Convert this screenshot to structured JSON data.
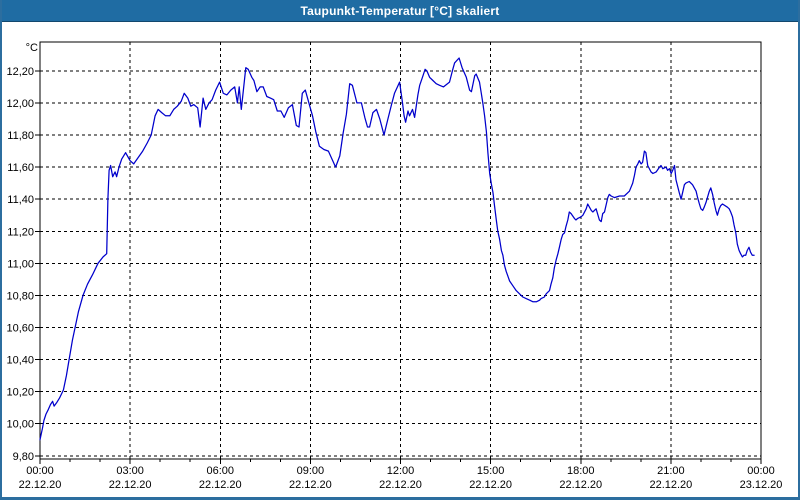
{
  "window": {
    "title": "Taupunkt-Temperatur [°C] skaliert"
  },
  "colors": {
    "titlebar_bg": "#1f6ca3",
    "titlebar_text": "#ffffff",
    "frame": "#2c6e9f",
    "plot_bg": "#ffffff",
    "grid": "#000000",
    "axis": "#000000",
    "label": "#000000",
    "line": "#0000cc"
  },
  "chart_data": {
    "type": "line",
    "title": "Taupunkt-Temperatur [°C] skaliert",
    "y_unit_label": "°C",
    "grid": "dashed",
    "legend": "none",
    "ylim": [
      9.78,
      12.38
    ],
    "xlim_hours": [
      0,
      24
    ],
    "minor_xtick_every_hours": 1,
    "yticks": [
      {
        "value": 12.2,
        "label": "12,20"
      },
      {
        "value": 12.0,
        "label": "12,00"
      },
      {
        "value": 11.8,
        "label": "11,80"
      },
      {
        "value": 11.6,
        "label": "11,60"
      },
      {
        "value": 11.4,
        "label": "11,40"
      },
      {
        "value": 11.2,
        "label": "11,20"
      },
      {
        "value": 11.0,
        "label": "11,00"
      },
      {
        "value": 10.8,
        "label": "10,80"
      },
      {
        "value": 10.6,
        "label": "10,60"
      },
      {
        "value": 10.4,
        "label": "10,40"
      },
      {
        "value": 10.2,
        "label": "10,20"
      },
      {
        "value": 10.0,
        "label": "10,00"
      },
      {
        "value": 9.8,
        "label": "9,80"
      }
    ],
    "xticks": [
      {
        "hour": 0,
        "time": "00:00",
        "date": "22.12.20"
      },
      {
        "hour": 3,
        "time": "03:00",
        "date": "22.12.20"
      },
      {
        "hour": 6,
        "time": "06:00",
        "date": "22.12.20"
      },
      {
        "hour": 9,
        "time": "09:00",
        "date": "22.12.20"
      },
      {
        "hour": 12,
        "time": "12:00",
        "date": "22.12.20"
      },
      {
        "hour": 15,
        "time": "15:00",
        "date": "22.12.20"
      },
      {
        "hour": 18,
        "time": "18:00",
        "date": "22.12.20"
      },
      {
        "hour": 21,
        "time": "21:00",
        "date": "22.12.20"
      },
      {
        "hour": 24,
        "time": "00:00",
        "date": "23.12.20"
      }
    ],
    "series": [
      {
        "name": "Taupunkt-Temperatur",
        "color": "#0000cc",
        "points": [
          [
            0,
            9.9
          ],
          [
            0.08,
            9.97
          ],
          [
            0.13,
            10.02
          ],
          [
            0.2,
            10.06
          ],
          [
            0.28,
            10.09
          ],
          [
            0.35,
            10.12
          ],
          [
            0.42,
            10.14
          ],
          [
            0.47,
            10.11
          ],
          [
            0.55,
            10.13
          ],
          [
            0.65,
            10.16
          ],
          [
            0.78,
            10.21
          ],
          [
            0.88,
            10.3
          ],
          [
            0.97,
            10.4
          ],
          [
            1.08,
            10.52
          ],
          [
            1.17,
            10.6
          ],
          [
            1.28,
            10.7
          ],
          [
            1.43,
            10.8
          ],
          [
            1.58,
            10.87
          ],
          [
            1.75,
            10.93
          ],
          [
            1.93,
            11.0
          ],
          [
            2.1,
            11.04
          ],
          [
            2.22,
            11.06
          ],
          [
            2.26,
            11.4
          ],
          [
            2.3,
            11.58
          ],
          [
            2.35,
            11.61
          ],
          [
            2.42,
            11.54
          ],
          [
            2.5,
            11.57
          ],
          [
            2.55,
            11.54
          ],
          [
            2.63,
            11.6
          ],
          [
            2.72,
            11.65
          ],
          [
            2.85,
            11.69
          ],
          [
            3.0,
            11.64
          ],
          [
            3.12,
            11.62
          ],
          [
            3.27,
            11.66
          ],
          [
            3.42,
            11.7
          ],
          [
            3.57,
            11.75
          ],
          [
            3.7,
            11.8
          ],
          [
            3.83,
            11.92
          ],
          [
            3.93,
            11.96
          ],
          [
            4.05,
            11.94
          ],
          [
            4.18,
            11.92
          ],
          [
            4.32,
            11.92
          ],
          [
            4.45,
            11.96
          ],
          [
            4.57,
            11.98
          ],
          [
            4.7,
            12.01
          ],
          [
            4.8,
            12.06
          ],
          [
            4.92,
            12.03
          ],
          [
            5.02,
            11.98
          ],
          [
            5.12,
            11.99
          ],
          [
            5.25,
            11.97
          ],
          [
            5.33,
            11.85
          ],
          [
            5.43,
            12.03
          ],
          [
            5.52,
            11.96
          ],
          [
            5.63,
            12.0
          ],
          [
            5.73,
            12.02
          ],
          [
            5.85,
            12.08
          ],
          [
            5.98,
            12.13
          ],
          [
            6.1,
            12.06
          ],
          [
            6.22,
            12.05
          ],
          [
            6.35,
            12.08
          ],
          [
            6.48,
            12.1
          ],
          [
            6.57,
            12.0
          ],
          [
            6.63,
            12.1
          ],
          [
            6.7,
            11.96
          ],
          [
            6.85,
            12.22
          ],
          [
            6.93,
            12.21
          ],
          [
            7.05,
            12.16
          ],
          [
            7.12,
            12.14
          ],
          [
            7.22,
            12.07
          ],
          [
            7.33,
            12.1
          ],
          [
            7.43,
            12.1
          ],
          [
            7.55,
            12.04
          ],
          [
            7.67,
            12.03
          ],
          [
            7.78,
            12.02
          ],
          [
            7.9,
            11.95
          ],
          [
            8.02,
            11.95
          ],
          [
            8.13,
            11.91
          ],
          [
            8.27,
            11.97
          ],
          [
            8.4,
            11.99
          ],
          [
            8.53,
            11.86
          ],
          [
            8.62,
            11.85
          ],
          [
            8.73,
            12.06
          ],
          [
            8.83,
            12.08
          ],
          [
            8.95,
            12.0
          ],
          [
            9.07,
            11.92
          ],
          [
            9.18,
            11.82
          ],
          [
            9.3,
            11.73
          ],
          [
            9.45,
            11.71
          ],
          [
            9.6,
            11.7
          ],
          [
            9.72,
            11.65
          ],
          [
            9.84,
            11.6
          ],
          [
            9.98,
            11.67
          ],
          [
            10.09,
            11.81
          ],
          [
            10.2,
            11.93
          ],
          [
            10.31,
            12.12
          ],
          [
            10.4,
            12.11
          ],
          [
            10.55,
            12.0
          ],
          [
            10.7,
            12.0
          ],
          [
            10.81,
            11.91
          ],
          [
            10.9,
            11.85
          ],
          [
            10.97,
            11.85
          ],
          [
            11.08,
            11.94
          ],
          [
            11.2,
            11.96
          ],
          [
            11.31,
            11.9
          ],
          [
            11.45,
            11.8
          ],
          [
            11.58,
            11.9
          ],
          [
            11.7,
            11.99
          ],
          [
            11.8,
            12.06
          ],
          [
            11.97,
            12.13
          ],
          [
            12.06,
            12.01
          ],
          [
            12.12,
            11.92
          ],
          [
            12.17,
            11.88
          ],
          [
            12.25,
            11.95
          ],
          [
            12.3,
            11.92
          ],
          [
            12.4,
            11.96
          ],
          [
            12.47,
            11.91
          ],
          [
            12.58,
            12.05
          ],
          [
            12.64,
            12.11
          ],
          [
            12.75,
            12.17
          ],
          [
            12.82,
            12.21
          ],
          [
            12.88,
            12.2
          ],
          [
            12.97,
            12.16
          ],
          [
            13.08,
            12.14
          ],
          [
            13.19,
            12.12
          ],
          [
            13.3,
            12.11
          ],
          [
            13.43,
            12.1
          ],
          [
            13.63,
            12.13
          ],
          [
            13.74,
            12.21
          ],
          [
            13.8,
            12.25
          ],
          [
            13.95,
            12.28
          ],
          [
            14.05,
            12.22
          ],
          [
            14.19,
            12.16
          ],
          [
            14.3,
            12.08
          ],
          [
            14.36,
            12.07
          ],
          [
            14.47,
            12.17
          ],
          [
            14.52,
            12.18
          ],
          [
            14.63,
            12.13
          ],
          [
            14.69,
            12.06
          ],
          [
            14.74,
            12.0
          ],
          [
            14.8,
            11.92
          ],
          [
            14.86,
            11.82
          ],
          [
            14.91,
            11.69
          ],
          [
            14.97,
            11.56
          ],
          [
            15.02,
            11.5
          ],
          [
            15.08,
            11.44
          ],
          [
            15.13,
            11.36
          ],
          [
            15.19,
            11.27
          ],
          [
            15.24,
            11.2
          ],
          [
            15.3,
            11.15
          ],
          [
            15.36,
            11.08
          ],
          [
            15.41,
            11.05
          ],
          [
            15.46,
            10.99
          ],
          [
            15.52,
            10.95
          ],
          [
            15.63,
            10.89
          ],
          [
            15.74,
            10.86
          ],
          [
            15.85,
            10.83
          ],
          [
            15.96,
            10.81
          ],
          [
            16.07,
            10.79
          ],
          [
            16.18,
            10.78
          ],
          [
            16.3,
            10.77
          ],
          [
            16.41,
            10.76
          ],
          [
            16.52,
            10.76
          ],
          [
            16.63,
            10.77
          ],
          [
            16.68,
            10.78
          ],
          [
            16.79,
            10.79
          ],
          [
            16.85,
            10.81
          ],
          [
            16.96,
            10.83
          ],
          [
            17.01,
            10.87
          ],
          [
            17.07,
            10.91
          ],
          [
            17.12,
            10.97
          ],
          [
            17.18,
            11.02
          ],
          [
            17.24,
            11.06
          ],
          [
            17.29,
            11.1
          ],
          [
            17.35,
            11.15
          ],
          [
            17.4,
            11.18
          ],
          [
            17.46,
            11.19
          ],
          [
            17.51,
            11.23
          ],
          [
            17.57,
            11.27
          ],
          [
            17.62,
            11.32
          ],
          [
            17.68,
            11.31
          ],
          [
            17.79,
            11.28
          ],
          [
            17.84,
            11.27
          ],
          [
            17.9,
            11.28
          ],
          [
            18.01,
            11.29
          ],
          [
            18.07,
            11.3
          ],
          [
            18.18,
            11.34
          ],
          [
            18.23,
            11.37
          ],
          [
            18.35,
            11.33
          ],
          [
            18.4,
            11.32
          ],
          [
            18.51,
            11.34
          ],
          [
            18.62,
            11.27
          ],
          [
            18.68,
            11.26
          ],
          [
            18.73,
            11.31
          ],
          [
            18.79,
            11.32
          ],
          [
            18.9,
            11.41
          ],
          [
            18.95,
            11.43
          ],
          [
            19.01,
            11.42
          ],
          [
            19.12,
            11.41
          ],
          [
            19.29,
            11.42
          ],
          [
            19.45,
            11.42
          ],
          [
            19.62,
            11.45
          ],
          [
            19.73,
            11.5
          ],
          [
            19.79,
            11.55
          ],
          [
            19.84,
            11.6
          ],
          [
            19.9,
            11.62
          ],
          [
            19.95,
            11.64
          ],
          [
            20.01,
            11.62
          ],
          [
            20.06,
            11.63
          ],
          [
            20.12,
            11.7
          ],
          [
            20.17,
            11.69
          ],
          [
            20.23,
            11.61
          ],
          [
            20.34,
            11.57
          ],
          [
            20.4,
            11.56
          ],
          [
            20.51,
            11.57
          ],
          [
            20.62,
            11.6
          ],
          [
            20.67,
            11.61
          ],
          [
            20.73,
            11.59
          ],
          [
            20.84,
            11.6
          ],
          [
            20.89,
            11.58
          ],
          [
            20.95,
            11.59
          ],
          [
            21.01,
            11.56
          ],
          [
            21.06,
            11.58
          ],
          [
            21.12,
            11.61
          ],
          [
            21.17,
            11.52
          ],
          [
            21.28,
            11.44
          ],
          [
            21.34,
            11.4
          ],
          [
            21.45,
            11.49
          ],
          [
            21.5,
            11.5
          ],
          [
            21.61,
            11.51
          ],
          [
            21.72,
            11.49
          ],
          [
            21.84,
            11.45
          ],
          [
            21.89,
            11.41
          ],
          [
            21.95,
            11.37
          ],
          [
            22.0,
            11.34
          ],
          [
            22.06,
            11.33
          ],
          [
            22.11,
            11.35
          ],
          [
            22.17,
            11.38
          ],
          [
            22.28,
            11.45
          ],
          [
            22.33,
            11.47
          ],
          [
            22.39,
            11.43
          ],
          [
            22.44,
            11.38
          ],
          [
            22.5,
            11.33
          ],
          [
            22.55,
            11.3
          ],
          [
            22.61,
            11.34
          ],
          [
            22.66,
            11.36
          ],
          [
            22.72,
            11.37
          ],
          [
            22.88,
            11.35
          ],
          [
            22.94,
            11.34
          ],
          [
            22.99,
            11.32
          ],
          [
            23.05,
            11.29
          ],
          [
            23.1,
            11.24
          ],
          [
            23.16,
            11.19
          ],
          [
            23.21,
            11.12
          ],
          [
            23.27,
            11.08
          ],
          [
            23.32,
            11.06
          ],
          [
            23.38,
            11.04
          ],
          [
            23.43,
            11.05
          ],
          [
            23.49,
            11.05
          ],
          [
            23.54,
            11.08
          ],
          [
            23.6,
            11.1
          ],
          [
            23.65,
            11.07
          ],
          [
            23.71,
            11.05
          ],
          [
            23.77,
            11.05
          ]
        ]
      }
    ]
  }
}
